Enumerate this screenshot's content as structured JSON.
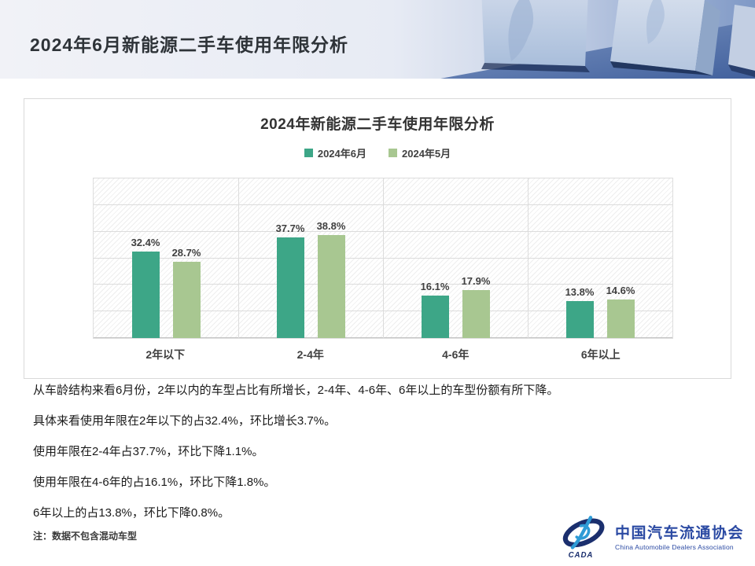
{
  "header": {
    "title": "2024年6月新能源二手车使用年限分析"
  },
  "chart_data": {
    "type": "bar",
    "title": "2024年新能源二手车使用年限分析",
    "categories": [
      "2年以下",
      "2-4年",
      "4-6年",
      "6年以上"
    ],
    "series": [
      {
        "name": "2024年6月",
        "color": "#3DA687",
        "values": [
          32.4,
          37.7,
          16.1,
          13.8
        ]
      },
      {
        "name": "2024年5月",
        "color": "#A8C791",
        "values": [
          28.7,
          38.8,
          17.9,
          14.6
        ]
      }
    ],
    "value_suffix": "%",
    "ylim": [
      0,
      60
    ],
    "gridline_interval": 10,
    "grid": true,
    "legend_position": "top",
    "data_labels": true
  },
  "analysis": {
    "paragraphs": [
      "从车龄结构来看6月份，2年以内的车型占比有所增长，2-4年、4-6年、6年以上的车型份额有所下降。",
      "具体来看使用年限在2年以下的占32.4%，环比增长3.7%。",
      "使用年限在2-4年占37.7%，环比下降1.1%。",
      "使用年限在4-6年的占16.1%，环比下降1.8%。",
      "6年以上的占13.8%，环比下降0.8%。"
    ],
    "note": "注：数据不包含混动车型"
  },
  "footer_logo": {
    "org_cn": "中国汽车流通协会",
    "org_en": "China Automobile Dealers Association",
    "mark_text": "CADA",
    "brand_blue": "#2b4aa3"
  }
}
